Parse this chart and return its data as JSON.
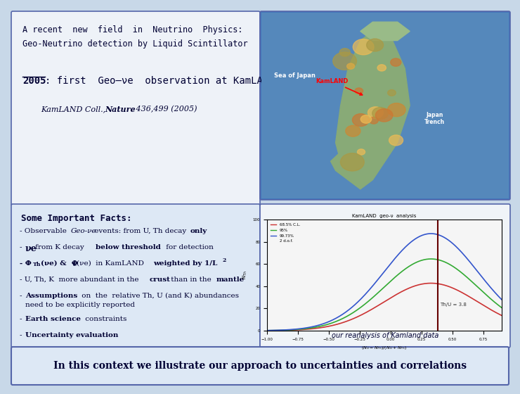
{
  "bg_color": "#c8d8e8",
  "title_box": {
    "text_line1": "A recent  new  field  in  Neutrino  Physics:",
    "text_line2": "Geo-Neutrino detection by Liquid Scintillator",
    "bg": "#eef2f8",
    "border": "#5566aa"
  },
  "year_line": "2005: first  Geo–νe  observation at KamLAND",
  "citation": "KamLAND Coll., Nature 436,499 (2005)",
  "facts_box": {
    "bg": "#dde8f5",
    "border": "#5566aa",
    "title": "Some Important Facts:"
  },
  "bottom_box": {
    "text": "In this context we illustrate our approach to uncertainties and correlations",
    "bg": "#dde8f5",
    "border": "#5566aa"
  },
  "japan_label_sea": "Sea of Japan",
  "japan_label_kam": "KamLAND",
  "japan_label_trench": "Japan\nTrench",
  "plot_label": "our reanalysis of Kamland data",
  "plot_title": "KamLAND  geo-ν  analysis",
  "thu_label": "Th/U = 3.8",
  "legend_68": "68.5% C.L.",
  "legend_95": "95%",
  "legend_99": "99.73%",
  "legend_dof": "2 d.o.f."
}
